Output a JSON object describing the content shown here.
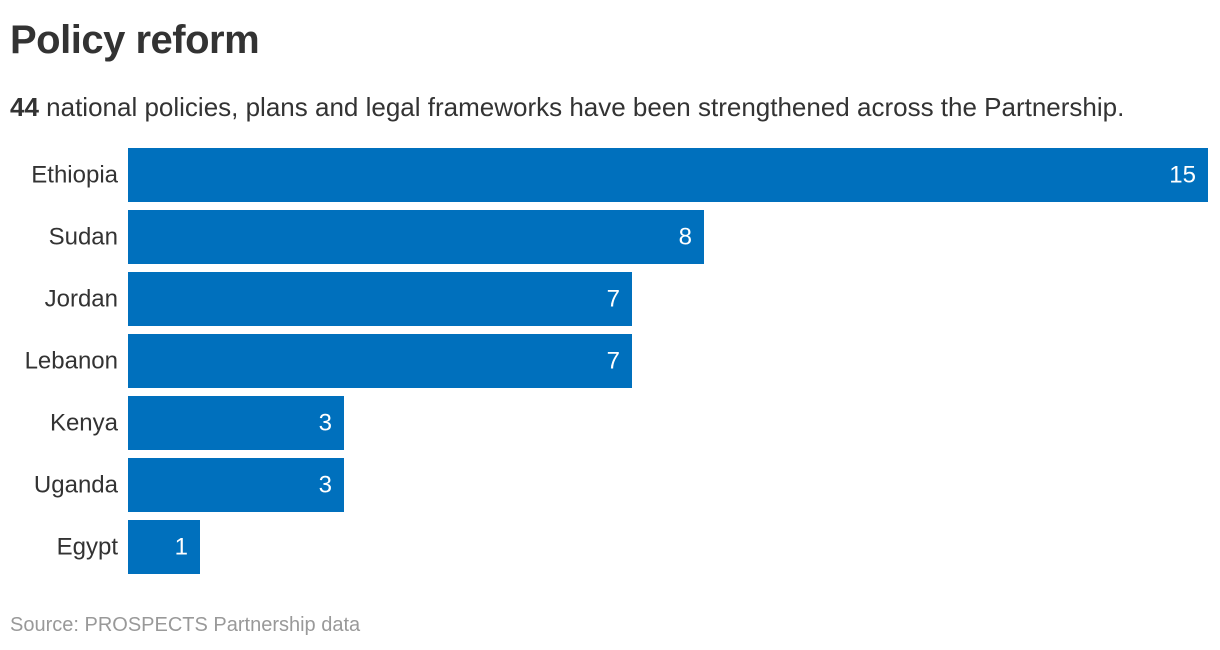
{
  "header": {
    "title": "Policy reform",
    "subtitle_number": "44",
    "subtitle_text": " national policies, plans and legal frameworks have been strengthened across the Partnership."
  },
  "footer": {
    "source": "Source: PROSPECTS Partnership data"
  },
  "colors": {
    "bar": "#0070bd",
    "label": "#333333",
    "value_label": "#ffffff"
  },
  "chart_data": {
    "type": "bar",
    "orientation": "horizontal",
    "categories": [
      "Ethiopia",
      "Sudan",
      "Jordan",
      "Lebanon",
      "Kenya",
      "Uganda",
      "Egypt"
    ],
    "values": [
      15,
      8,
      7,
      7,
      3,
      3,
      1
    ],
    "xlim": [
      0,
      15
    ],
    "grid": false,
    "legend": "none",
    "data_labels": "inside-end"
  }
}
